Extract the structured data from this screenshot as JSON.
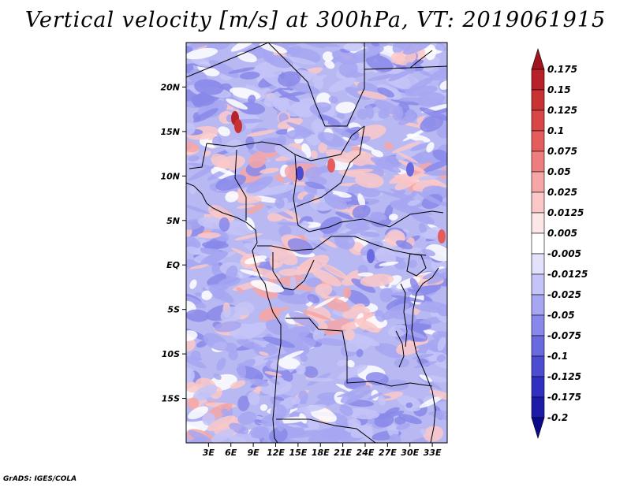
{
  "title": "Vertical velocity [m/s] at 300hPa, VT: 2019061915",
  "credit": "GrADS: IGES/COLA",
  "map": {
    "lat_range": [
      -20,
      25
    ],
    "lon_range": [
      0,
      35
    ],
    "lat_ticks": [
      {
        "lat": 20,
        "label": "20N"
      },
      {
        "lat": 15,
        "label": "15N"
      },
      {
        "lat": 10,
        "label": "10N"
      },
      {
        "lat": 5,
        "label": "5N"
      },
      {
        "lat": 0,
        "label": "EQ"
      },
      {
        "lat": -5,
        "label": "5S"
      },
      {
        "lat": -10,
        "label": "10S"
      },
      {
        "lat": -15,
        "label": "15S"
      }
    ],
    "lon_ticks": [
      {
        "lon": 3,
        "label": "3E"
      },
      {
        "lon": 6,
        "label": "6E"
      },
      {
        "lon": 9,
        "label": "9E"
      },
      {
        "lon": 12,
        "label": "12E"
      },
      {
        "lon": 15,
        "label": "15E"
      },
      {
        "lon": 18,
        "label": "18E"
      },
      {
        "lon": 21,
        "label": "21E"
      },
      {
        "lon": 24,
        "label": "24E"
      },
      {
        "lon": 27,
        "label": "27E"
      },
      {
        "lon": 30,
        "label": "30E"
      },
      {
        "lon": 33,
        "label": "33E"
      }
    ]
  },
  "colorbar": {
    "labels": [
      "0.175",
      "0.15",
      "0.125",
      "0.1",
      "0.075",
      "0.05",
      "0.025",
      "0.0125",
      "0.005",
      "-0.005",
      "-0.0125",
      "-0.025",
      "-0.05",
      "-0.075",
      "-0.1",
      "-0.125",
      "-0.175",
      "-0.2"
    ],
    "colors": [
      "#a0141e",
      "#b8202a",
      "#c83232",
      "#d84646",
      "#e45c5c",
      "#ee7e7e",
      "#f6a6a6",
      "#fac8c8",
      "#fde6e6",
      "#ffffff",
      "#e2e2fc",
      "#c4c4f8",
      "#a6a6f2",
      "#8888ea",
      "#6a6ae0",
      "#4c4cd2",
      "#3030c0",
      "#1c1ca8",
      "#0a0a8c"
    ]
  }
}
